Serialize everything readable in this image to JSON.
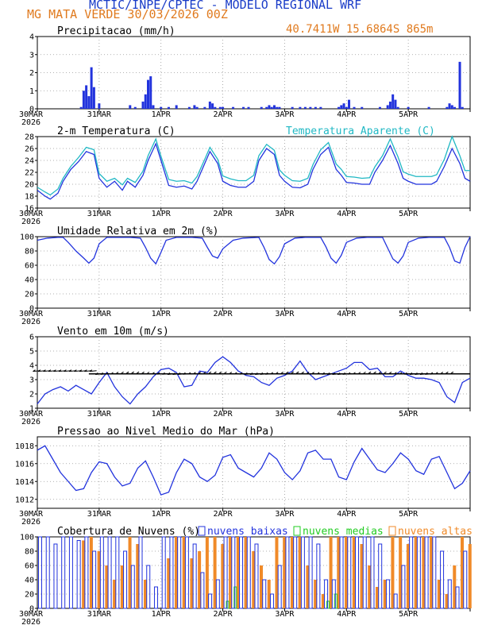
{
  "header": {
    "title": "MCTIC/INPE/CPTEC - MODELO REGIONAL WRF",
    "location": "MG MATA VERDE    30/03/2026 00Z",
    "coords": "40.7411W 15.6864S 865m"
  },
  "time_axis": {
    "labels": [
      "30MAR",
      "31MAR",
      "1APR",
      "2APR",
      "3APR",
      "4APR",
      "5APR"
    ],
    "year": "2026",
    "hours_total": 168
  },
  "colors": {
    "primary": "#2233dd",
    "apparent": "#20b8c4",
    "medium": "#22cc22",
    "high": "#f08a28",
    "wind": "#000000",
    "grid": "#999999"
  },
  "chart_data": [
    {
      "type": "bar",
      "id": "precip",
      "title": "Precipitacao (mm/h)",
      "ylim": [
        0,
        4
      ],
      "yticks": [
        0,
        1,
        2,
        3,
        4
      ],
      "x": [
        17,
        18,
        19,
        20,
        21,
        22,
        24,
        36,
        38,
        41,
        42,
        43,
        44,
        45,
        48,
        51,
        54,
        59,
        61,
        62,
        65,
        67,
        68,
        69,
        71,
        72,
        76,
        80,
        82,
        87,
        89,
        90,
        91,
        92,
        93,
        94,
        99,
        102,
        104,
        106,
        108,
        110,
        117,
        118,
        119,
        120,
        121,
        123,
        126,
        133,
        136,
        137,
        138,
        139,
        140,
        144,
        152,
        159,
        160,
        161,
        162,
        164,
        165
      ],
      "values": [
        0.1,
        1.0,
        1.3,
        0.7,
        2.3,
        1.2,
        0.3,
        0.2,
        0.1,
        0.4,
        0.8,
        1.6,
        1.8,
        0.2,
        0.1,
        0.1,
        0.2,
        0.1,
        0.2,
        0.1,
        0.1,
        0.4,
        0.3,
        0.1,
        0.1,
        0.1,
        0.1,
        0.1,
        0.1,
        0.1,
        0.1,
        0.2,
        0.1,
        0.2,
        0.1,
        0.1,
        0.1,
        0.1,
        0.1,
        0.1,
        0.1,
        0.1,
        0.1,
        0.2,
        0.3,
        0.1,
        0.5,
        0.1,
        0.1,
        0.1,
        0.2,
        0.4,
        0.8,
        0.5,
        0.1,
        0.1,
        0.1,
        0.1,
        0.3,
        0.2,
        0.1,
        2.6,
        0.1
      ]
    },
    {
      "type": "line",
      "id": "temp",
      "title": "2-m Temperatura (C)",
      "legend": "Temperatura Aparente (C)",
      "ylim": [
        16,
        28
      ],
      "yticks": [
        16,
        18,
        20,
        22,
        24,
        26,
        28
      ],
      "series": [
        {
          "name": "2-m Temperatura (C)",
          "x": [
            0,
            3,
            5,
            8,
            10,
            13,
            16,
            19,
            22,
            24,
            27,
            30,
            33,
            35,
            38,
            41,
            43,
            46,
            48,
            51,
            54,
            57,
            60,
            62,
            65,
            67,
            70,
            72,
            75,
            78,
            81,
            84,
            86,
            89,
            92,
            94,
            96,
            99,
            102,
            105,
            107,
            110,
            113,
            116,
            118,
            120,
            123,
            126,
            129,
            131,
            134,
            137,
            140,
            142,
            144,
            147,
            150,
            153,
            155,
            158,
            161,
            164,
            166,
            168
          ],
          "values": [
            19,
            18,
            17.5,
            18.5,
            20.5,
            22.5,
            23.8,
            25.5,
            25,
            21,
            19.5,
            20.5,
            19,
            20.5,
            19.5,
            21.5,
            24,
            26.8,
            24,
            19.8,
            19.5,
            19.7,
            19.2,
            20.5,
            23.5,
            25.5,
            23.5,
            20.5,
            19.8,
            19.5,
            19.5,
            20.5,
            24,
            26,
            25,
            21.5,
            20.5,
            19.5,
            19.4,
            20,
            22.5,
            25,
            26.2,
            22.5,
            21.5,
            20.3,
            20.2,
            20,
            20,
            22,
            24,
            26.5,
            23.5,
            21,
            20.5,
            20,
            20,
            20,
            20.5,
            23,
            26,
            23.5,
            21,
            20.5
          ]
        },
        {
          "name": "Temperatura Aparente (C)",
          "x": [
            0,
            3,
            5,
            8,
            10,
            13,
            16,
            19,
            22,
            24,
            27,
            30,
            33,
            35,
            38,
            41,
            43,
            46,
            48,
            51,
            54,
            57,
            60,
            62,
            65,
            67,
            70,
            72,
            75,
            78,
            81,
            84,
            86,
            89,
            92,
            94,
            96,
            99,
            102,
            105,
            107,
            110,
            113,
            116,
            118,
            120,
            123,
            126,
            129,
            131,
            134,
            137,
            140,
            142,
            144,
            147,
            150,
            153,
            155,
            158,
            161,
            164,
            166,
            168
          ],
          "values": [
            19.5,
            18.7,
            18.2,
            19.2,
            21,
            23,
            24.5,
            26.2,
            25.8,
            21.8,
            20.5,
            21,
            19.9,
            21,
            20.3,
            22.2,
            24.8,
            27.6,
            24.7,
            20.8,
            20.5,
            20.6,
            20.2,
            21.3,
            24.2,
            26.2,
            24.2,
            21.4,
            20.9,
            20.6,
            20.6,
            21.5,
            24.8,
            26.7,
            25.7,
            22.4,
            21.5,
            20.6,
            20.5,
            21,
            23.3,
            25.8,
            27,
            23.4,
            22.5,
            21.3,
            21.2,
            21,
            21.1,
            22.9,
            24.8,
            27.6,
            24.6,
            22.1,
            21.7,
            21.3,
            21.3,
            21.3,
            21.6,
            24.2,
            28,
            24.8,
            22.3,
            22.3
          ]
        }
      ]
    },
    {
      "type": "line",
      "id": "rh",
      "title": "Umidade Relativa em 2m (%)",
      "ylim": [
        0,
        100
      ],
      "yticks": [
        0,
        20,
        40,
        60,
        80,
        100
      ],
      "series": [
        {
          "name": "Umidade Relativa em 2m (%)",
          "x": [
            0,
            4,
            8,
            10,
            12,
            15,
            18,
            20,
            22,
            24,
            27,
            30,
            36,
            40,
            42,
            44,
            46,
            48,
            50,
            54,
            60,
            64,
            66,
            68,
            70,
            72,
            76,
            80,
            86,
            88,
            90,
            92,
            94,
            96,
            100,
            104,
            110,
            112,
            114,
            116,
            118,
            120,
            124,
            128,
            134,
            136,
            138,
            140,
            142,
            144,
            148,
            152,
            158,
            160,
            162,
            164,
            166,
            168
          ],
          "values": [
            95,
            98,
            99,
            99,
            92,
            80,
            70,
            63,
            70,
            90,
            99,
            99,
            99,
            98,
            85,
            70,
            62,
            78,
            95,
            99,
            99,
            98,
            85,
            73,
            70,
            83,
            95,
            98,
            99,
            85,
            68,
            62,
            72,
            90,
            98,
            99,
            99,
            86,
            70,
            63,
            74,
            92,
            98,
            99,
            99,
            84,
            69,
            63,
            73,
            92,
            98,
            99,
            99,
            85,
            66,
            63,
            85,
            100
          ]
        }
      ]
    },
    {
      "type": "line",
      "id": "wind",
      "title": "Vento em 10m (m/s)",
      "ylim": [
        1,
        6
      ],
      "yticks": [
        1,
        2,
        3,
        4,
        5,
        6
      ],
      "series": [
        {
          "name": "Vento em 10m (m/s)",
          "x": [
            0,
            3,
            6,
            9,
            12,
            15,
            18,
            21,
            24,
            27,
            30,
            33,
            36,
            39,
            42,
            45,
            48,
            51,
            54,
            57,
            60,
            63,
            66,
            69,
            72,
            75,
            78,
            81,
            84,
            87,
            90,
            93,
            96,
            99,
            102,
            105,
            108,
            111,
            114,
            117,
            120,
            123,
            126,
            129,
            132,
            135,
            138,
            141,
            144,
            147,
            150,
            153,
            156,
            159,
            162,
            165,
            168
          ],
          "values": [
            1.3,
            2,
            2.3,
            2.5,
            2.2,
            2.6,
            2.3,
            2,
            2.8,
            3.5,
            2.5,
            1.8,
            1.3,
            2,
            2.5,
            3.2,
            3.7,
            3.8,
            3.5,
            2.5,
            2.6,
            3.6,
            3.5,
            4.2,
            4.6,
            4.2,
            3.6,
            3.3,
            3.2,
            2.8,
            2.6,
            3.1,
            3.3,
            3.6,
            4.3,
            3.5,
            3,
            3.2,
            3.4,
            3.6,
            3.8,
            4.2,
            4.2,
            3.7,
            3.8,
            3.2,
            3.2,
            3.6,
            3.3,
            3.1,
            3.1,
            3,
            2.8,
            1.8,
            1.4,
            2.8,
            3.1
          ]
        }
      ],
      "arrows": {
        "level": 3.4,
        "note": "wind direction barbs"
      }
    },
    {
      "type": "line",
      "id": "pressure",
      "title": "Pressao ao Nivel Medio do Mar (hPa)",
      "ylim": [
        1011,
        1019
      ],
      "yticks": [
        1012,
        1014,
        1016,
        1018
      ],
      "series": [
        {
          "name": "Pressao ao Nivel Medio do Mar (hPa)",
          "x": [
            0,
            3,
            6,
            9,
            12,
            15,
            18,
            21,
            24,
            27,
            30,
            33,
            36,
            39,
            42,
            45,
            48,
            51,
            54,
            57,
            60,
            63,
            66,
            69,
            72,
            75,
            78,
            81,
            84,
            87,
            90,
            93,
            96,
            99,
            102,
            105,
            108,
            111,
            114,
            117,
            120,
            123,
            126,
            129,
            132,
            135,
            138,
            141,
            144,
            147,
            150,
            153,
            156,
            159,
            162,
            165,
            168
          ],
          "values": [
            1017.5,
            1018,
            1016.5,
            1015,
            1014,
            1013,
            1013.2,
            1015,
            1016.2,
            1016,
            1014.5,
            1013.5,
            1013.8,
            1015.5,
            1016.3,
            1014.5,
            1012.5,
            1012.8,
            1015,
            1016.5,
            1016,
            1014.5,
            1014,
            1014.7,
            1016.7,
            1017,
            1015.5,
            1015,
            1014.5,
            1015.5,
            1017.2,
            1016.5,
            1015,
            1014.2,
            1015.2,
            1017.2,
            1017.5,
            1016.5,
            1016.5,
            1014.5,
            1014.2,
            1016.2,
            1017.7,
            1016.5,
            1015.3,
            1015,
            1016,
            1017.2,
            1016.5,
            1015.2,
            1014.8,
            1016.5,
            1016.8,
            1015,
            1013.2,
            1013.8,
            1015.2
          ]
        }
      ]
    },
    {
      "type": "bar",
      "id": "clouds",
      "title": "Cobertura de Nuvens (%)",
      "legend": [
        "nuvens baixas",
        "nuvens medias",
        "nuvens altas"
      ],
      "ylim": [
        0,
        100
      ],
      "yticks": [
        0,
        20,
        40,
        60,
        80,
        100
      ],
      "x": [
        2,
        5,
        8,
        11,
        14,
        17,
        20,
        23,
        26,
        29,
        32,
        35,
        38,
        41,
        44,
        47,
        50,
        53,
        56,
        59,
        62,
        65,
        68,
        71,
        74,
        77,
        80,
        83,
        86,
        89,
        92,
        95,
        98,
        101,
        104,
        107,
        110,
        113,
        116,
        119,
        122,
        125,
        128,
        131,
        134,
        137,
        140,
        143,
        146,
        149,
        152,
        155,
        158,
        161,
        164,
        167
      ],
      "series": [
        {
          "name": "nuvens baixas",
          "values": [
            100,
            100,
            90,
            100,
            100,
            95,
            100,
            80,
            100,
            100,
            100,
            80,
            60,
            100,
            60,
            30,
            100,
            100,
            100,
            100,
            90,
            50,
            20,
            40,
            100,
            100,
            100,
            100,
            90,
            40,
            20,
            60,
            100,
            100,
            100,
            100,
            90,
            40,
            40,
            100,
            100,
            100,
            100,
            100,
            90,
            40,
            20,
            60,
            100,
            100,
            100,
            100,
            80,
            40,
            30,
            80
          ]
        },
        {
          "name": "nuvens medias",
          "values": [
            0,
            0,
            0,
            0,
            0,
            0,
            0,
            0,
            0,
            0,
            0,
            0,
            0,
            0,
            0,
            0,
            0,
            0,
            0,
            0,
            0,
            0,
            0,
            0,
            10,
            30,
            0,
            0,
            0,
            0,
            0,
            0,
            0,
            0,
            0,
            0,
            0,
            10,
            20,
            0,
            0,
            0,
            0,
            0,
            0,
            0,
            0,
            0,
            0,
            0,
            0,
            0,
            0,
            0,
            0,
            0
          ]
        },
        {
          "name": "nuvens altas",
          "values": [
            0,
            0,
            0,
            0,
            0,
            95,
            100,
            80,
            60,
            40,
            60,
            100,
            90,
            40,
            0,
            0,
            70,
            100,
            100,
            70,
            80,
            100,
            100,
            90,
            100,
            100,
            100,
            80,
            60,
            40,
            100,
            100,
            100,
            100,
            60,
            40,
            20,
            100,
            100,
            100,
            100,
            90,
            60,
            30,
            40,
            100,
            100,
            90,
            100,
            100,
            100,
            40,
            20,
            60,
            100,
            90
          ]
        }
      ]
    }
  ]
}
